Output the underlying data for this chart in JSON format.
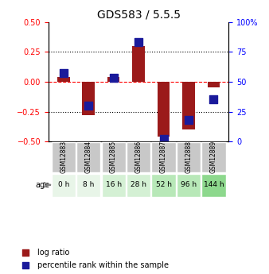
{
  "title": "GDS583 / 5.5.5",
  "samples": [
    "GSM12883",
    "GSM12884",
    "GSM12885",
    "GSM12886",
    "GSM12887",
    "GSM12888",
    "GSM12889"
  ],
  "age_labels": [
    "0 h",
    "8 h",
    "16 h",
    "28 h",
    "52 h",
    "96 h",
    "144 h"
  ],
  "log_ratio": [
    0.04,
    -0.28,
    0.04,
    0.3,
    -0.46,
    -0.4,
    -0.05
  ],
  "percentile_rank": [
    57,
    30,
    53,
    83,
    2,
    18,
    35
  ],
  "bar_color": "#9b1a1a",
  "dot_color": "#1a1a9b",
  "ylim_left": [
    -0.5,
    0.5
  ],
  "ylim_right": [
    0,
    100
  ],
  "yticks_left": [
    -0.5,
    -0.25,
    0,
    0.25,
    0.5
  ],
  "yticks_right": [
    0,
    25,
    50,
    75,
    100
  ],
  "age_colors": [
    "#e8f5e8",
    "#e8f5e8",
    "#d4f0d4",
    "#d4f0d4",
    "#b8e8b8",
    "#b8e8b8",
    "#8dd88d"
  ],
  "label_log_ratio": "log ratio",
  "label_percentile": "percentile rank within the sample",
  "background_color": "#ffffff",
  "bar_width": 0.5,
  "dot_size": 60
}
